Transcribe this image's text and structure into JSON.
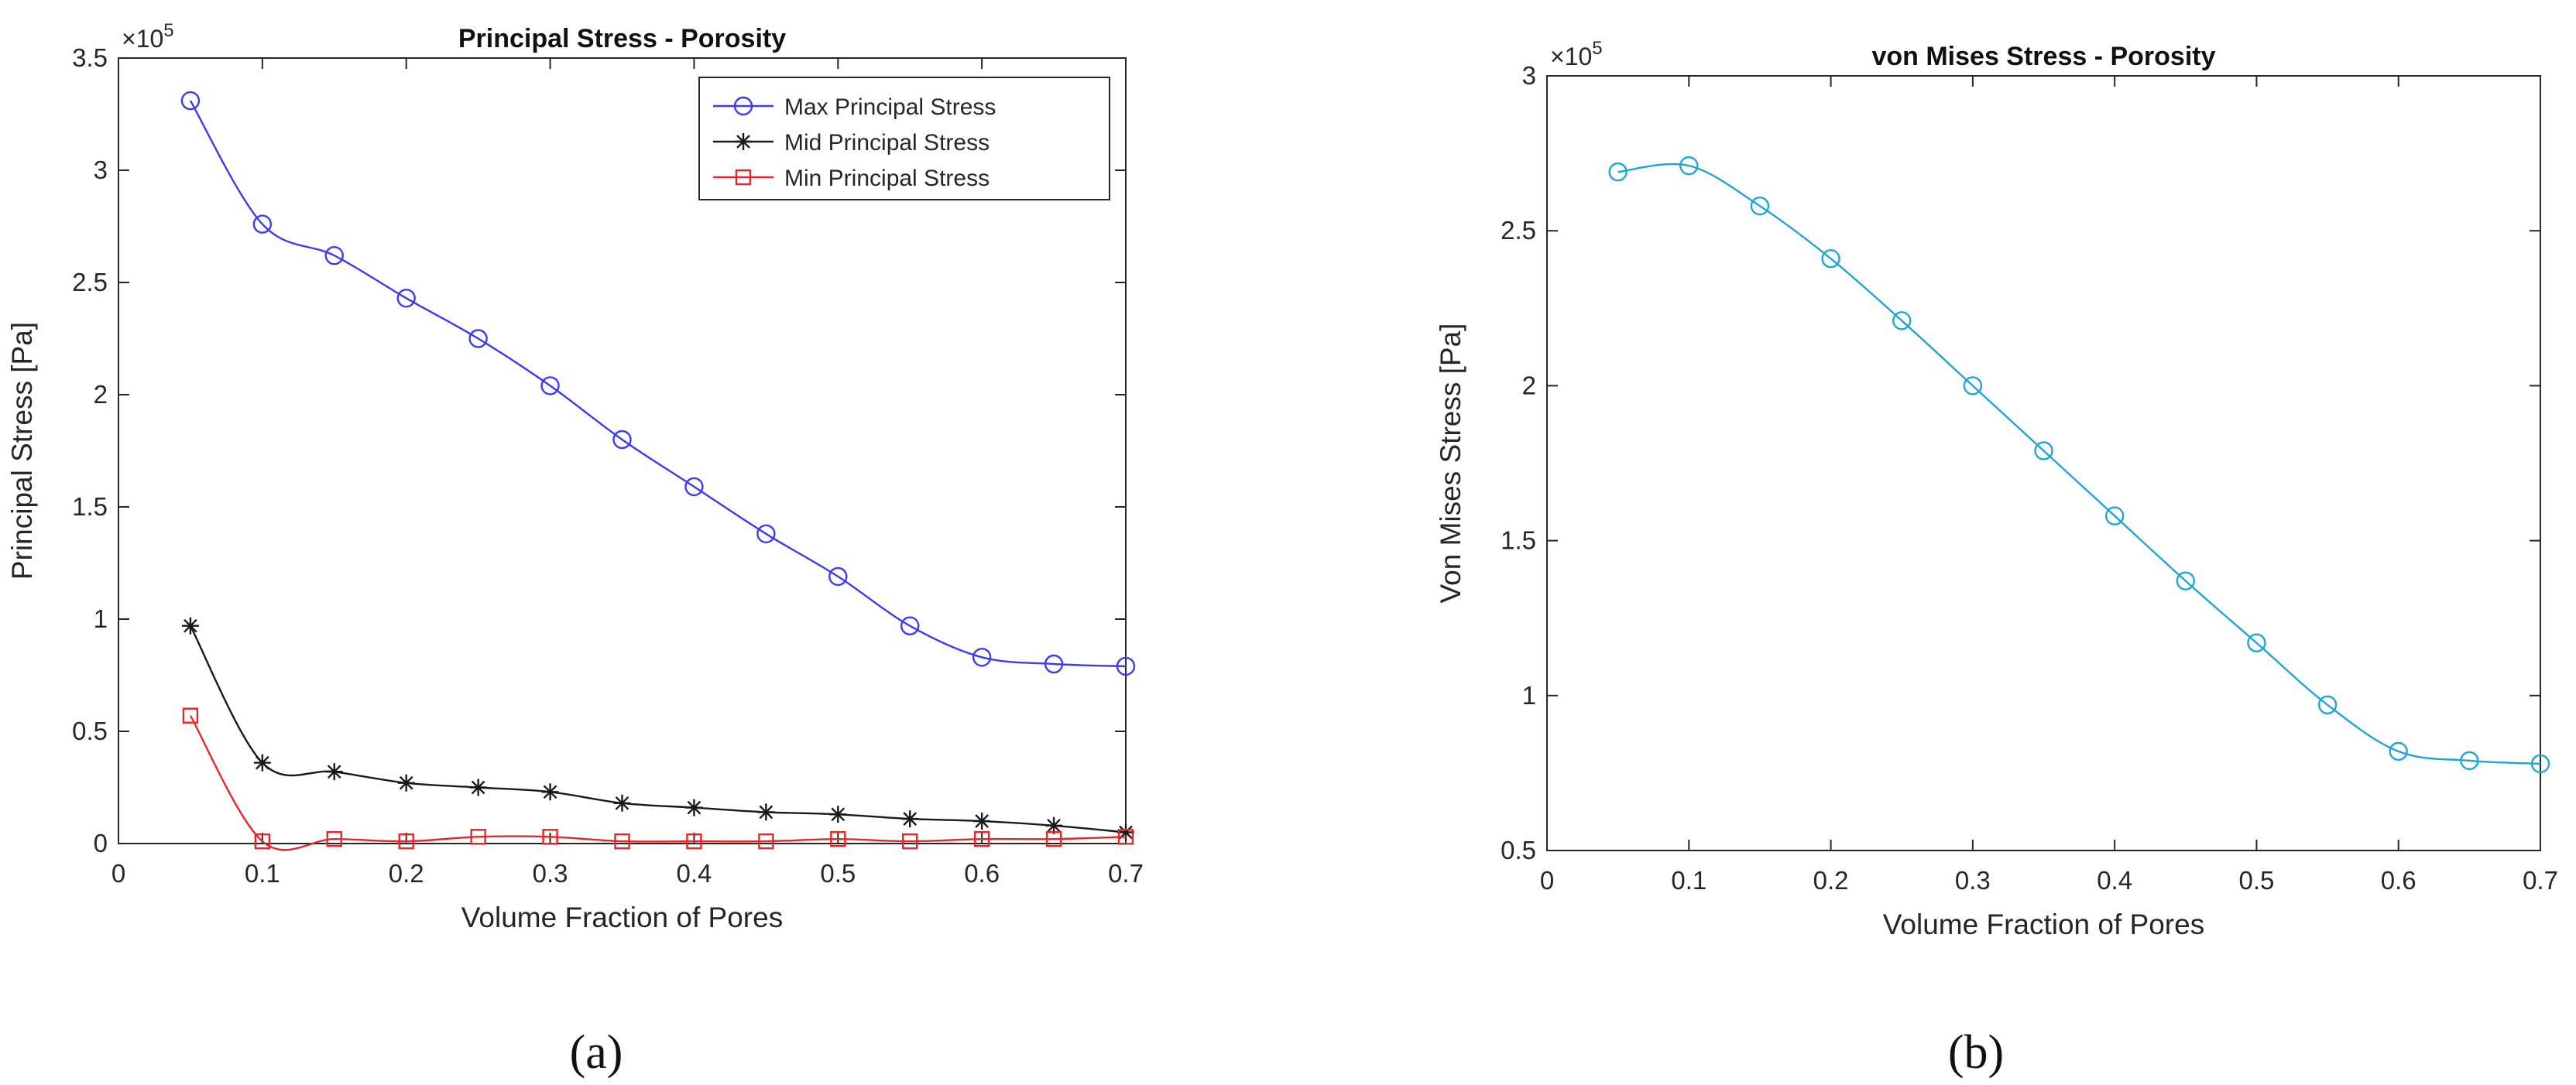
{
  "chart_data": [
    {
      "type": "line",
      "panel_label": "(a)",
      "title": "Principal Stress - Porosity",
      "xlabel": "Volume Fraction of Pores",
      "ylabel": "Principal Stress [Pa]",
      "y_exponent_label": "×10",
      "y_exponent": "5",
      "xlim": [
        0,
        0.7
      ],
      "ylim": [
        0,
        3.5
      ],
      "xticks": [
        "0",
        "0.1",
        "0.2",
        "0.3",
        "0.4",
        "0.5",
        "0.6",
        "0.7"
      ],
      "yticks": [
        "0",
        "0.5",
        "1",
        "1.5",
        "2",
        "2.5",
        "3",
        "3.5"
      ],
      "y_scale": 100000,
      "x": [
        0.05,
        0.1,
        0.15,
        0.2,
        0.25,
        0.3,
        0.35,
        0.4,
        0.45,
        0.5,
        0.55,
        0.6,
        0.65,
        0.7
      ],
      "legend_position": "top-right",
      "series": [
        {
          "name": "Max Principal Stress",
          "color": "#3b3bf0",
          "marker": "circle",
          "values": [
            3.31,
            2.76,
            2.62,
            2.43,
            2.25,
            2.04,
            1.8,
            1.59,
            1.38,
            1.19,
            0.97,
            0.83,
            0.8,
            0.79
          ]
        },
        {
          "name": "Mid Principal Stress",
          "color": "#1a1a1a",
          "marker": "star",
          "values": [
            0.97,
            0.36,
            0.32,
            0.27,
            0.25,
            0.23,
            0.18,
            0.16,
            0.14,
            0.13,
            0.11,
            0.1,
            0.08,
            0.05
          ]
        },
        {
          "name": "Min Principal Stress",
          "color": "#e8262a",
          "marker": "square",
          "values": [
            0.57,
            0.01,
            0.02,
            0.01,
            0.03,
            0.03,
            0.01,
            0.01,
            0.01,
            0.02,
            0.01,
            0.02,
            0.02,
            0.03
          ]
        }
      ]
    },
    {
      "type": "line",
      "panel_label": "(b)",
      "title": "von Mises Stress - Porosity",
      "xlabel": "Volume Fraction of Pores",
      "ylabel": "Von Mises Stress [Pa]",
      "y_exponent_label": "×10",
      "y_exponent": "5",
      "xlim": [
        0,
        0.7
      ],
      "ylim": [
        0.5,
        3
      ],
      "xticks": [
        "0",
        "0.1",
        "0.2",
        "0.3",
        "0.4",
        "0.5",
        "0.6",
        "0.7"
      ],
      "yticks": [
        "0.5",
        "1",
        "1.5",
        "2",
        "2.5",
        "3"
      ],
      "y_scale": 100000,
      "x": [
        0.05,
        0.1,
        0.15,
        0.2,
        0.25,
        0.3,
        0.35,
        0.4,
        0.45,
        0.5,
        0.55,
        0.6,
        0.65,
        0.7
      ],
      "series": [
        {
          "name": "Von Mises Stress",
          "color": "#1ea6d8",
          "marker": "circle",
          "values": [
            2.69,
            2.71,
            2.58,
            2.41,
            2.21,
            2.0,
            1.79,
            1.58,
            1.37,
            1.17,
            0.97,
            0.82,
            0.79,
            0.78
          ]
        }
      ]
    }
  ]
}
